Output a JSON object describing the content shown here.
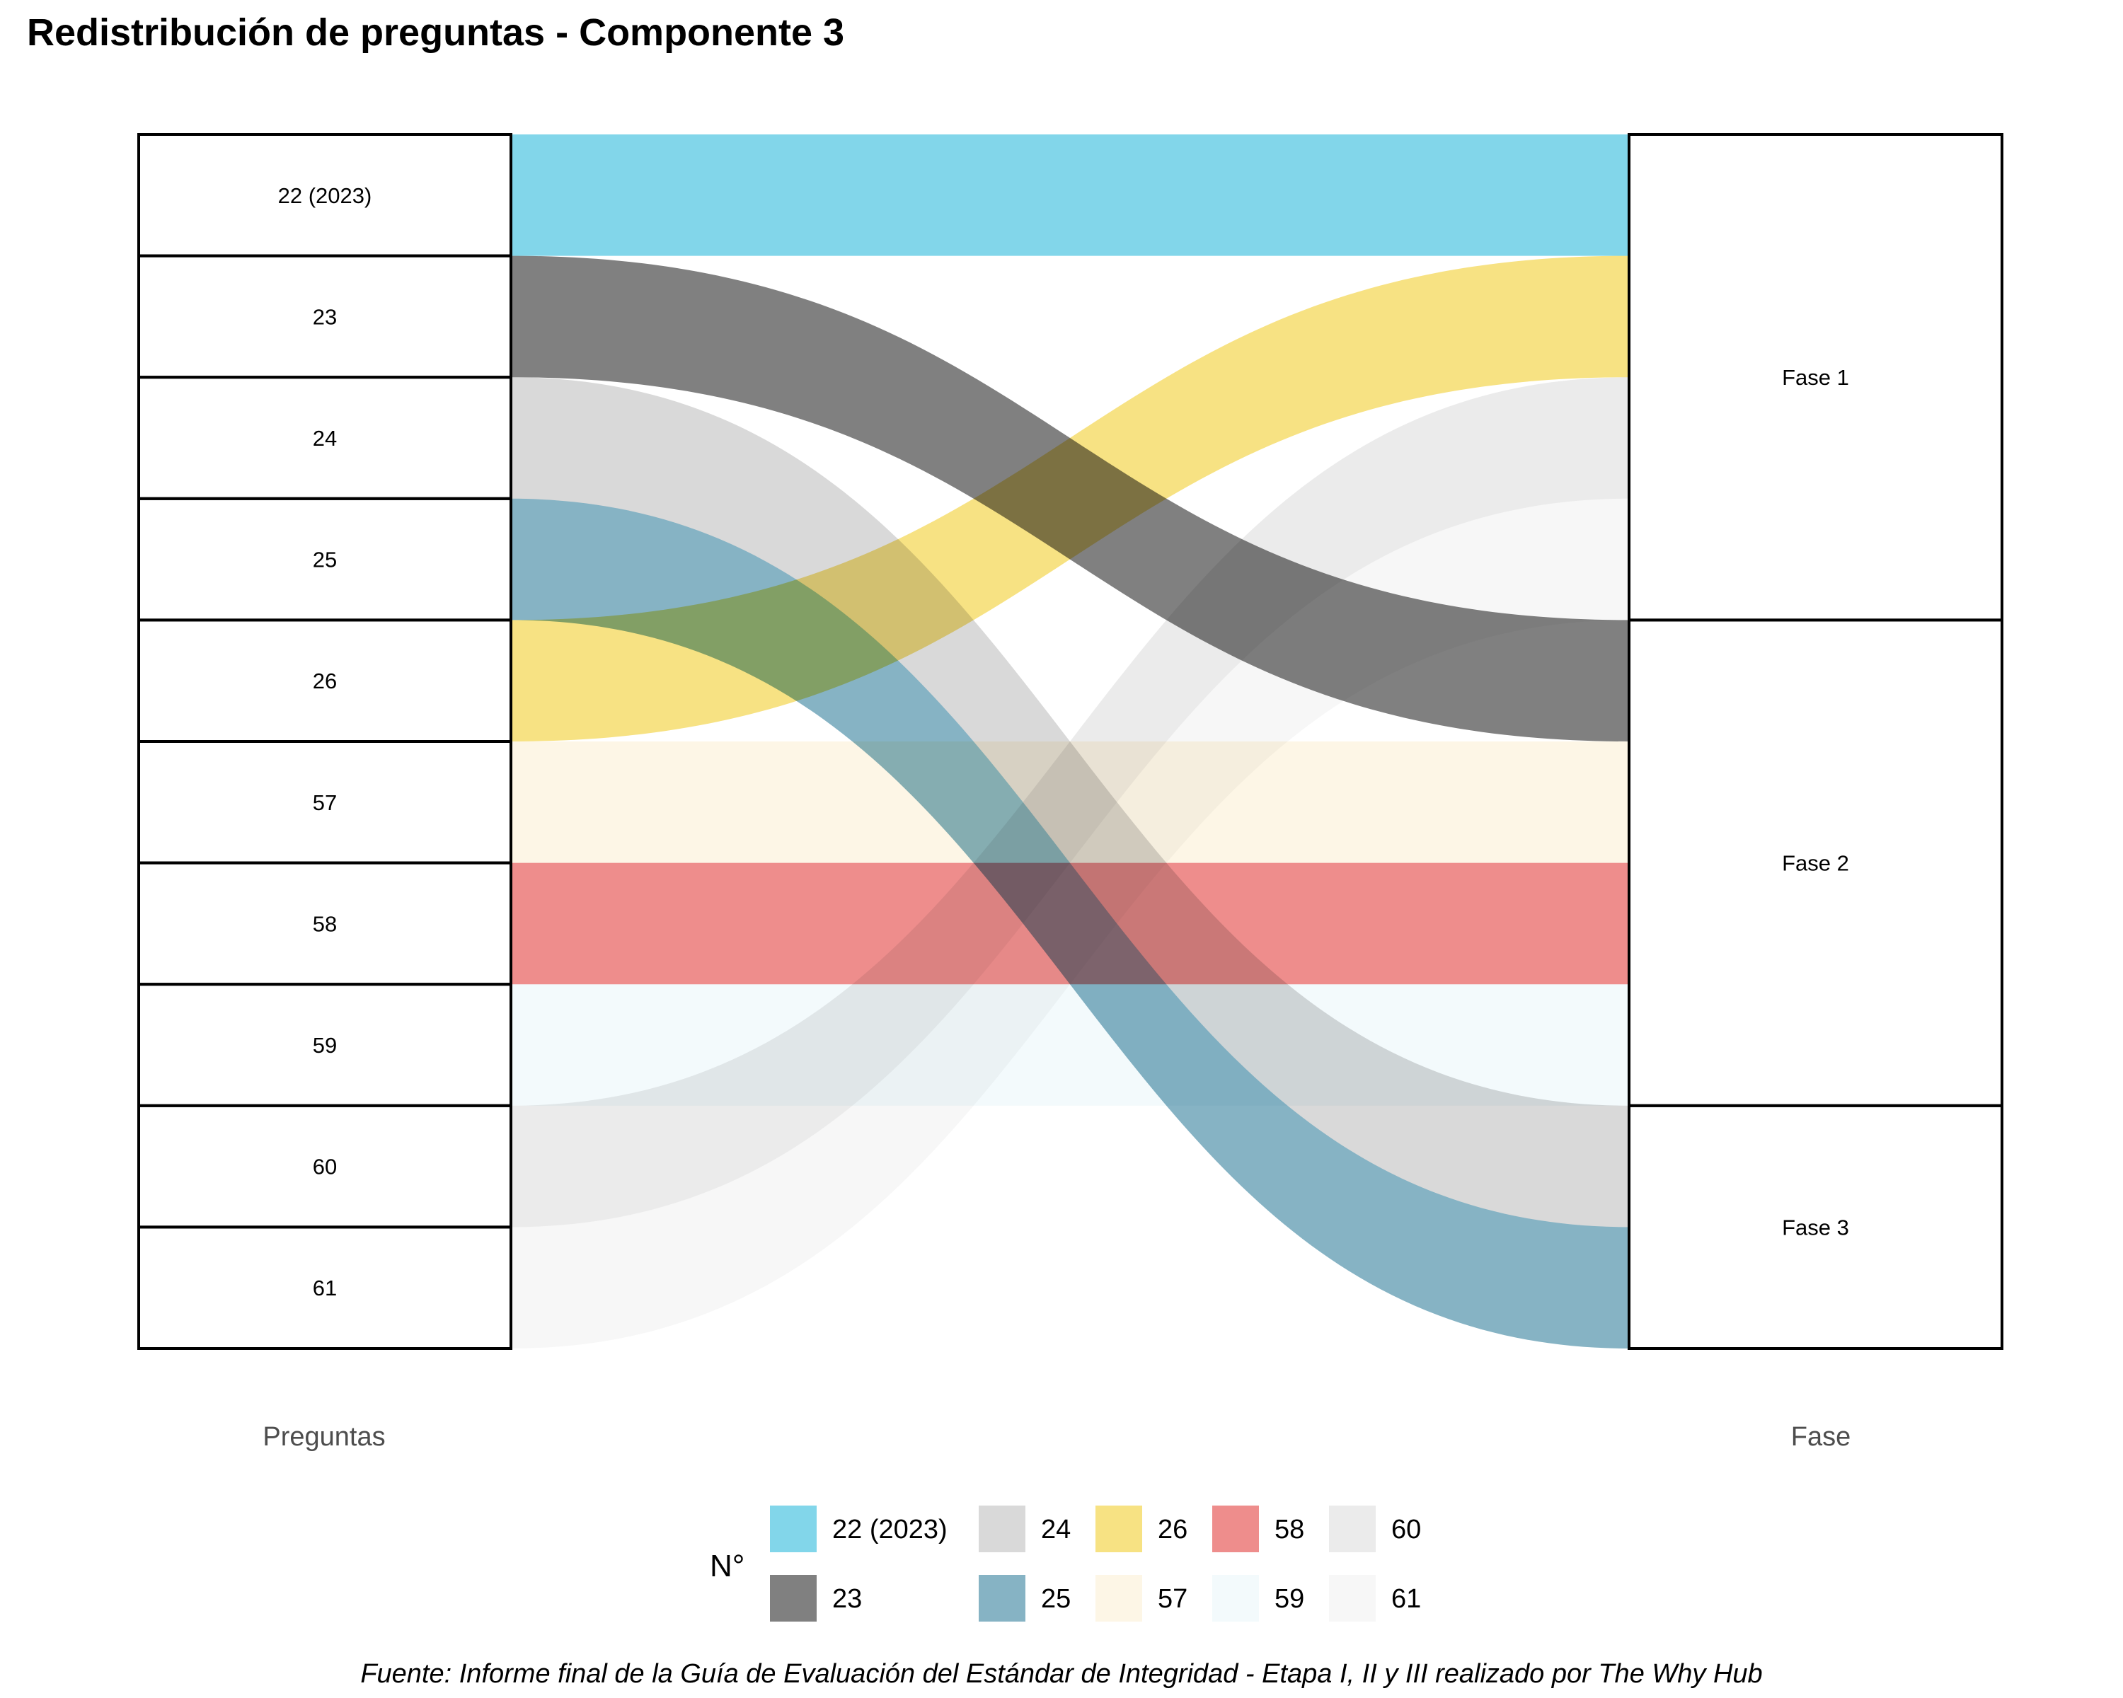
{
  "chart_data": {
    "type": "alluvial",
    "title": "Redistribución de preguntas - Componente 3",
    "axes": [
      "Preguntas",
      "Fase"
    ],
    "legend_title": "N°",
    "legend_position": "bottom",
    "caption": "Fuente: Informe final de la Guía de Evaluación del Estándar de Integridad - Etapa I, II y III realizado por The Why Hub",
    "left_strata": [
      "22 (2023)",
      "23",
      "24",
      "25",
      "26",
      "57",
      "58",
      "59",
      "60",
      "61"
    ],
    "right_strata": [
      {
        "label": "Fase 1",
        "value": 4
      },
      {
        "label": "Fase 2",
        "value": 4
      },
      {
        "label": "Fase 3",
        "value": 2
      }
    ],
    "flows": [
      {
        "from": "22 (2023)",
        "to": "Fase 1",
        "value": 1,
        "color": "#82D6EA"
      },
      {
        "from": "23",
        "to": "Fase 2",
        "value": 1,
        "color": "#808080"
      },
      {
        "from": "24",
        "to": "Fase 3",
        "value": 1,
        "color": "#D9D9D9"
      },
      {
        "from": "25",
        "to": "Fase 3",
        "value": 1,
        "color": "#86B3C4"
      },
      {
        "from": "26",
        "to": "Fase 1",
        "value": 1,
        "color": "#F7E283"
      },
      {
        "from": "57",
        "to": "Fase 2",
        "value": 1,
        "color": "#FDF6E6"
      },
      {
        "from": "58",
        "to": "Fase 2",
        "value": 1,
        "color": "#EE8D8C"
      },
      {
        "from": "59",
        "to": "Fase 2",
        "value": 1,
        "color": "#F3FAFC"
      },
      {
        "from": "60",
        "to": "Fase 1",
        "value": 1,
        "color": "#EBEBEB"
      },
      {
        "from": "61",
        "to": "Fase 1",
        "value": 1,
        "color": "#F7F7F7"
      }
    ],
    "right_stack_order": {
      "Fase 1": [
        "22 (2023)",
        "26",
        "60",
        "61"
      ],
      "Fase 2": [
        "23",
        "57",
        "58",
        "59"
      ],
      "Fase 3": [
        "24",
        "25"
      ]
    }
  }
}
